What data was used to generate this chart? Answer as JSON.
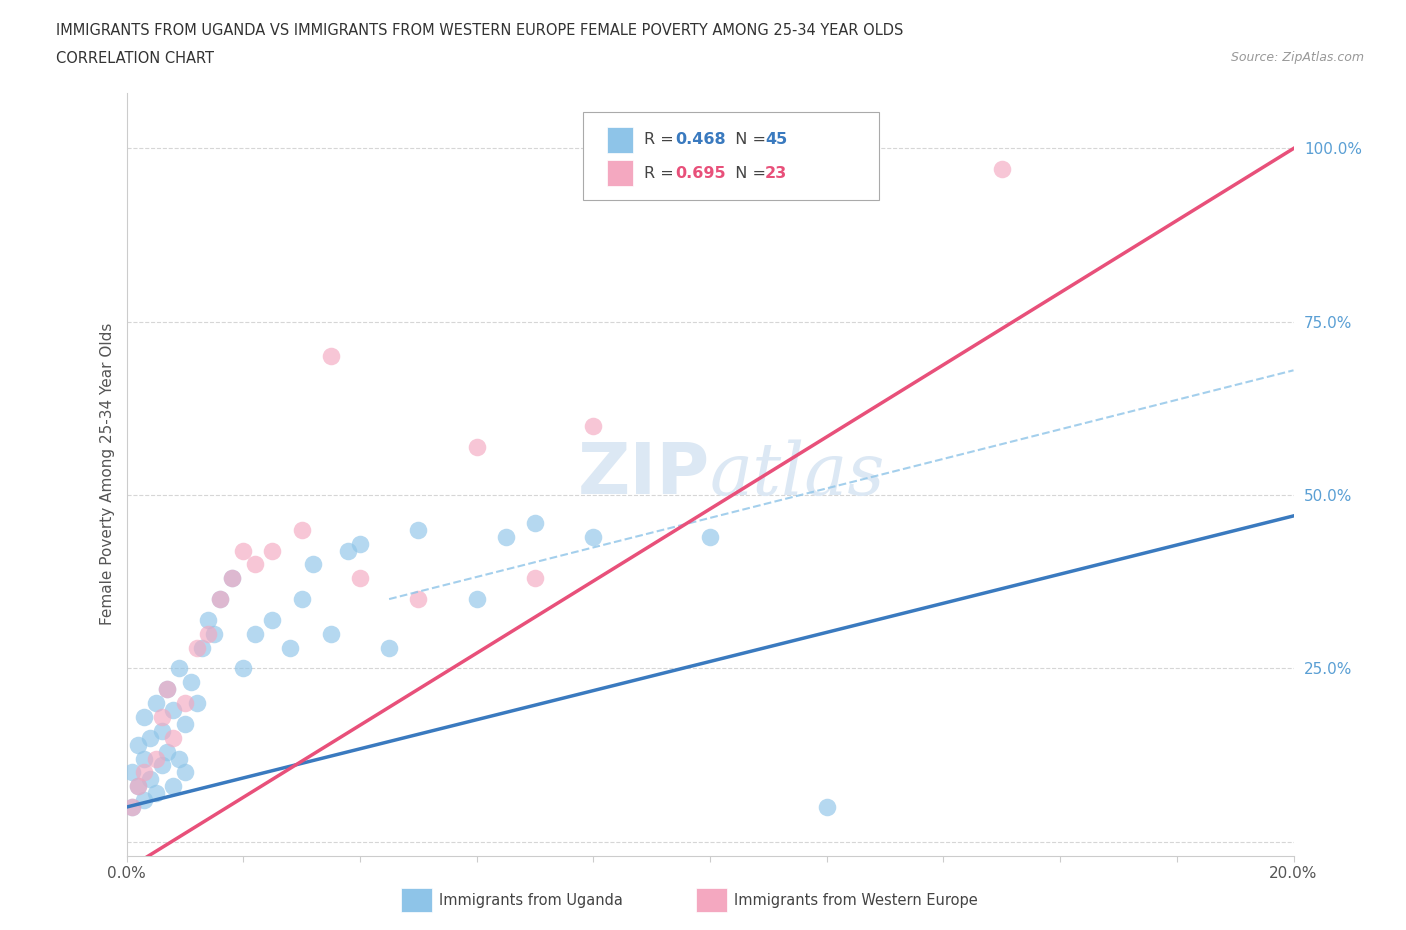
{
  "title": "IMMIGRANTS FROM UGANDA VS IMMIGRANTS FROM WESTERN EUROPE FEMALE POVERTY AMONG 25-34 YEAR OLDS",
  "subtitle": "CORRELATION CHART",
  "source": "Source: ZipAtlas.com",
  "ylabel": "Female Poverty Among 25-34 Year Olds",
  "xlim": [
    0.0,
    0.2
  ],
  "ylim": [
    -0.02,
    1.08
  ],
  "color_uganda": "#8ec4e8",
  "color_western": "#f4a8c0",
  "line_color_uganda": "#3a7abf",
  "line_color_western": "#e8507a",
  "line_color_dashed": "#8ec4e8",
  "ytick_color": "#5a9fd4",
  "watermark_color": "#dce8f4",
  "R_uganda": "0.468",
  "N_uganda": "45",
  "R_western": "0.695",
  "N_western": "23",
  "uganda_x": [
    0.001,
    0.001,
    0.002,
    0.002,
    0.003,
    0.003,
    0.003,
    0.004,
    0.004,
    0.005,
    0.005,
    0.006,
    0.006,
    0.007,
    0.007,
    0.008,
    0.008,
    0.009,
    0.009,
    0.01,
    0.01,
    0.011,
    0.012,
    0.013,
    0.014,
    0.015,
    0.016,
    0.018,
    0.02,
    0.022,
    0.025,
    0.028,
    0.03,
    0.032,
    0.035,
    0.038,
    0.04,
    0.045,
    0.05,
    0.06,
    0.065,
    0.07,
    0.08,
    0.1,
    0.12
  ],
  "uganda_y": [
    0.05,
    0.1,
    0.08,
    0.14,
    0.06,
    0.12,
    0.18,
    0.09,
    0.15,
    0.07,
    0.2,
    0.11,
    0.16,
    0.13,
    0.22,
    0.08,
    0.19,
    0.12,
    0.25,
    0.1,
    0.17,
    0.23,
    0.2,
    0.28,
    0.32,
    0.3,
    0.35,
    0.38,
    0.25,
    0.3,
    0.32,
    0.28,
    0.35,
    0.4,
    0.3,
    0.42,
    0.43,
    0.28,
    0.45,
    0.35,
    0.44,
    0.46,
    0.44,
    0.44,
    0.05
  ],
  "western_x": [
    0.001,
    0.002,
    0.003,
    0.005,
    0.006,
    0.007,
    0.008,
    0.01,
    0.012,
    0.014,
    0.016,
    0.018,
    0.02,
    0.022,
    0.025,
    0.03,
    0.035,
    0.04,
    0.05,
    0.06,
    0.07,
    0.08,
    0.15
  ],
  "western_y": [
    0.05,
    0.08,
    0.1,
    0.12,
    0.18,
    0.22,
    0.15,
    0.2,
    0.28,
    0.3,
    0.35,
    0.38,
    0.42,
    0.4,
    0.42,
    0.45,
    0.7,
    0.38,
    0.35,
    0.57,
    0.38,
    0.6,
    0.97
  ],
  "uganda_line": [
    0.0,
    0.2,
    0.05,
    0.47
  ],
  "western_line": [
    0.0,
    0.2,
    -0.04,
    1.0
  ],
  "dashed_line": [
    0.045,
    0.2,
    0.35,
    0.68
  ]
}
